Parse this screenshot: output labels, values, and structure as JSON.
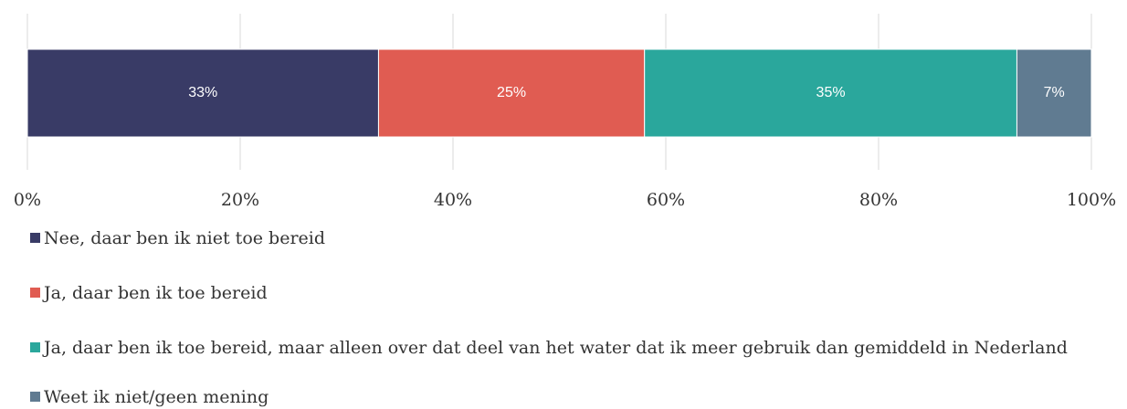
{
  "chart_data": {
    "type": "bar",
    "orientation": "horizontal",
    "stacked": true,
    "series": [
      {
        "name": "Nee, daar ben ik niet toe bereid",
        "color": "#393b66",
        "values": [
          33
        ],
        "value_labels": [
          "33%"
        ]
      },
      {
        "name": "Ja, daar ben ik toe bereid",
        "color": "#e05c52",
        "values": [
          25
        ],
        "value_labels": [
          "25%"
        ]
      },
      {
        "name": "Ja, daar ben ik toe bereid, maar alleen over dat deel van het water dat ik meer gebruik dan gemiddeld in Nederland",
        "color": "#2aa79c",
        "values": [
          35
        ],
        "value_labels": [
          "35%"
        ]
      },
      {
        "name": "Weet ik niet/geen mening",
        "color": "#607b91",
        "values": [
          7
        ],
        "value_labels": [
          "7%"
        ]
      }
    ],
    "xlim": [
      0,
      100
    ],
    "xticks": [
      {
        "value": 0,
        "label": "0%"
      },
      {
        "value": 20,
        "label": "20%"
      },
      {
        "value": 40,
        "label": "40%"
      },
      {
        "value": 60,
        "label": "60%"
      },
      {
        "value": 80,
        "label": "80%"
      },
      {
        "value": 100,
        "label": "100%"
      }
    ],
    "grid": true,
    "legend": "bottom"
  }
}
